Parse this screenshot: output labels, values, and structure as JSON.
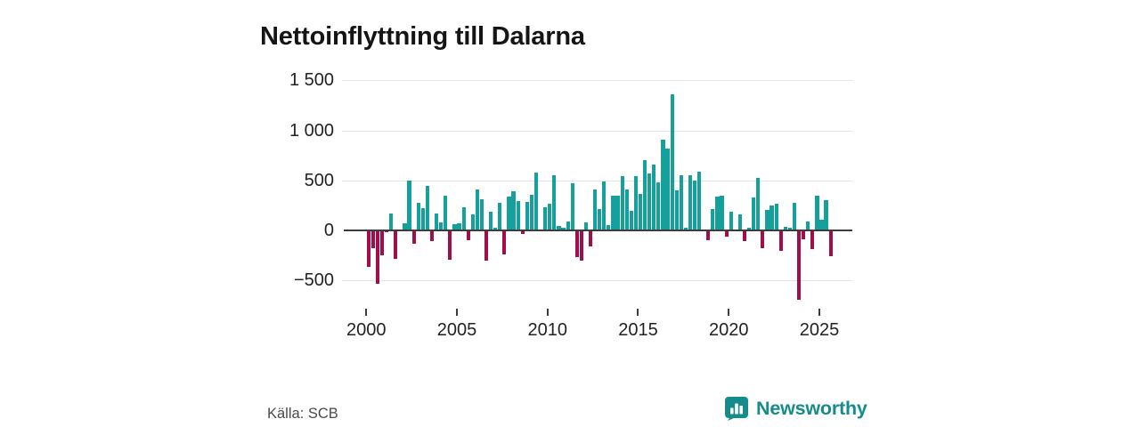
{
  "page": {
    "title": "Nettoinflyttning till Dalarna",
    "source": "Källa: SCB"
  },
  "brand": {
    "name": "Newsworthy"
  },
  "colors": {
    "positive": "#16a09b",
    "negative": "#a10e49",
    "grid": "#e4e4e4",
    "zero_line": "#3c3c3c",
    "tick": "#3c3c3c",
    "label": "#222222",
    "title": "#151515",
    "source": "#4a4a4a",
    "brand": "#168b8b"
  },
  "chart_data": {
    "type": "bar",
    "title": "Nettoinflyttning till Dalarna",
    "frequency": "quarterly",
    "start": "2000 Q1",
    "end": "2025 Q3",
    "grid": "horizontal",
    "legend": "none",
    "x_axis": {
      "tick_years": [
        2000,
        2005,
        2010,
        2015,
        2020,
        2025
      ]
    },
    "y_axis": {
      "range": [
        -750,
        1500
      ],
      "ticks": [
        {
          "value": 1500,
          "label": "1 500"
        },
        {
          "value": 1000,
          "label": "1 000"
        },
        {
          "value": 500,
          "label": "500"
        },
        {
          "value": 0,
          "label": "0"
        },
        {
          "value": -500,
          "label": "−500"
        }
      ]
    },
    "values_by_year": [
      {
        "year": 2000,
        "q": [
          -365,
          -180,
          -530,
          -250
        ]
      },
      {
        "year": 2001,
        "q": [
          -15,
          165,
          -285,
          10
        ]
      },
      {
        "year": 2002,
        "q": [
          75,
          495,
          -130,
          275
        ]
      },
      {
        "year": 2003,
        "q": [
          220,
          445,
          -105,
          170
        ]
      },
      {
        "year": 2004,
        "q": [
          80,
          350,
          -290,
          60
        ]
      },
      {
        "year": 2005,
        "q": [
          75,
          230,
          -100,
          160
        ]
      },
      {
        "year": 2006,
        "q": [
          405,
          310,
          -305,
          190
        ]
      },
      {
        "year": 2007,
        "q": [
          30,
          280,
          -240,
          340
        ]
      },
      {
        "year": 2008,
        "q": [
          395,
          295,
          -40,
          285
        ]
      },
      {
        "year": 2009,
        "q": [
          360,
          575,
          5,
          230
        ]
      },
      {
        "year": 2010,
        "q": [
          270,
          550,
          45,
          25
        ]
      },
      {
        "year": 2011,
        "q": [
          90,
          475,
          -270,
          -305
        ]
      },
      {
        "year": 2012,
        "q": [
          80,
          -160,
          410,
          215
        ]
      },
      {
        "year": 2013,
        "q": [
          490,
          55,
          345,
          350
        ]
      },
      {
        "year": 2014,
        "q": [
          540,
          410,
          200,
          540
        ]
      },
      {
        "year": 2015,
        "q": [
          365,
          700,
          570,
          660
        ]
      },
      {
        "year": 2016,
        "q": [
          480,
          910,
          820,
          1360
        ]
      },
      {
        "year": 2017,
        "q": [
          400,
          555,
          30,
          555
        ]
      },
      {
        "year": 2018,
        "q": [
          500,
          585,
          5,
          -100
        ]
      },
      {
        "year": 2019,
        "q": [
          210,
          335,
          350,
          -60
        ]
      },
      {
        "year": 2020,
        "q": [
          185,
          5,
          160,
          -105
        ]
      },
      {
        "year": 2021,
        "q": [
          25,
          325,
          525,
          -180
        ]
      },
      {
        "year": 2022,
        "q": [
          205,
          245,
          270,
          -205
        ]
      },
      {
        "year": 2023,
        "q": [
          35,
          30,
          280,
          -695
        ]
      },
      {
        "year": 2024,
        "q": [
          -90,
          90,
          -185,
          350
        ]
      },
      {
        "year": 2025,
        "q": [
          110,
          305,
          -255
        ]
      }
    ]
  }
}
